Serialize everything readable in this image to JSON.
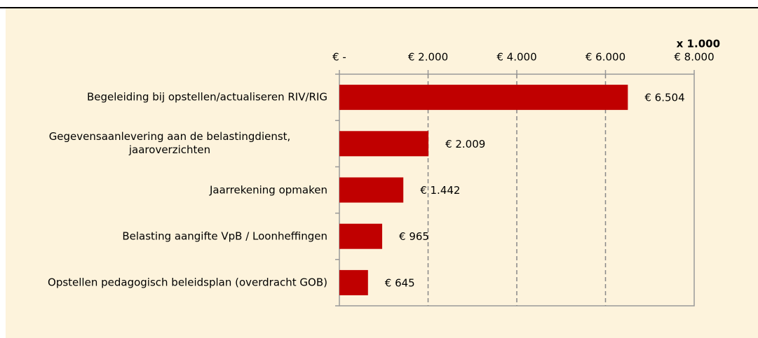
{
  "chart_data": {
    "type": "bar",
    "orientation": "horizontal",
    "axis_unit": "x 1.000",
    "categories": [
      "Begeleiding bij opstellen/actualiseren RIV/RIG",
      "Gegevensaanlevering aan de belastingdienst, jaaroverzichten",
      "Jaarrekening opmaken",
      "Belasting aangifte VpB / Loonheffingen",
      "Opstellen pedagogisch beleidsplan (overdracht GOB)"
    ],
    "values": [
      6504,
      2009,
      1442,
      965,
      645
    ],
    "value_labels": [
      "€ 6.504",
      "€ 2.009",
      "€ 1.442",
      "€ 965",
      "€ 645"
    ],
    "color": "#c00000",
    "xlim": [
      0,
      8000
    ],
    "xticks": [
      {
        "value": 0,
        "label": "€ -"
      },
      {
        "value": 2000,
        "label": "€ 2.000"
      },
      {
        "value": 4000,
        "label": "€ 4.000"
      },
      {
        "value": 6000,
        "label": "€ 6.000"
      },
      {
        "value": 8000,
        "label": "€ 8.000"
      }
    ],
    "grid": true
  }
}
